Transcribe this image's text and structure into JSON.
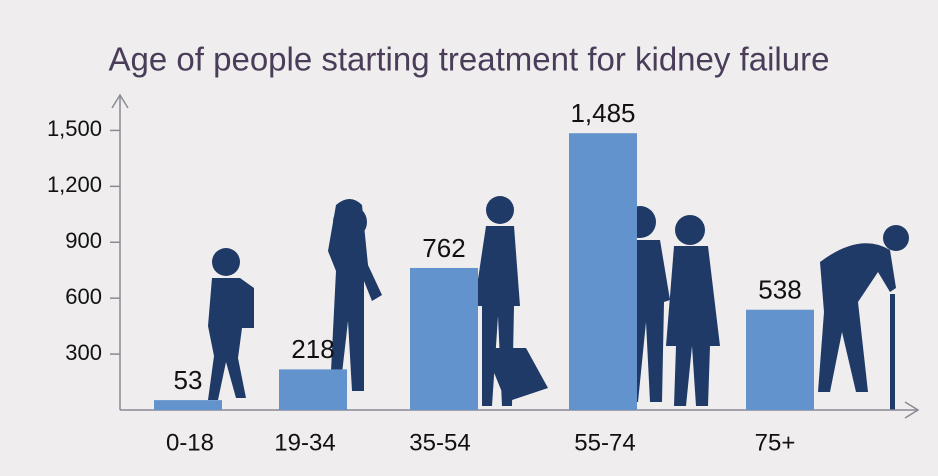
{
  "chart_data": {
    "type": "bar",
    "title": "Age of people starting treatment for kidney failure",
    "categories": [
      "0-18",
      "19-34",
      "35-54",
      "55-74",
      "75+"
    ],
    "values": [
      53,
      218,
      762,
      1485,
      538
    ],
    "color": "#6393cd",
    "ylim": [
      0,
      1690
    ],
    "yticks": [
      300,
      600,
      900,
      {
        "value": 1200,
        "label": "1,200"
      },
      {
        "value": 1500,
        "label": "1,500"
      }
    ],
    "value_labels": [
      "53",
      "218",
      "762",
      "1,485",
      "538"
    ],
    "grid": false
  }
}
